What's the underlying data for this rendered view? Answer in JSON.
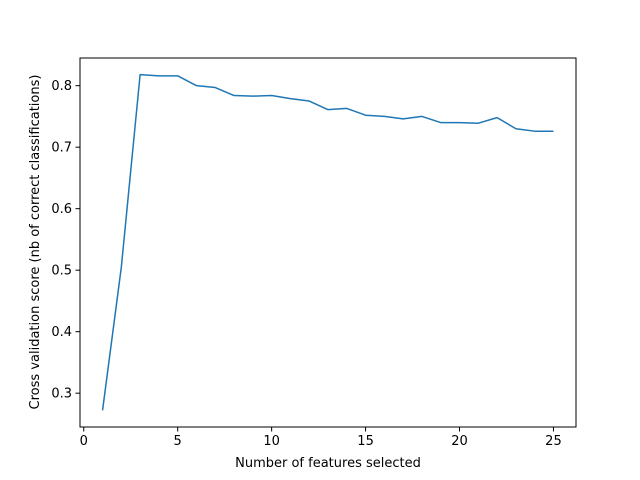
{
  "chart_data": {
    "type": "line",
    "title": "",
    "xlabel": "Number of features selected",
    "ylabel": "Cross validation score (nb of correct classifications)",
    "xlim": [
      -0.2,
      26.2
    ],
    "ylim": [
      0.245,
      0.845
    ],
    "xticks": [
      0,
      5,
      10,
      15,
      20,
      25
    ],
    "xtick_labels": [
      "0",
      "5",
      "10",
      "15",
      "20",
      "25"
    ],
    "yticks": [
      0.3,
      0.4,
      0.5,
      0.6,
      0.7,
      0.8
    ],
    "ytick_labels": [
      "0.3",
      "0.4",
      "0.5",
      "0.6",
      "0.7",
      "0.8"
    ],
    "grid": false,
    "series": [
      {
        "color": "#1f77b4",
        "x": [
          1,
          2,
          3,
          4,
          5,
          6,
          7,
          8,
          9,
          10,
          11,
          12,
          13,
          14,
          15,
          16,
          17,
          18,
          19,
          20,
          21,
          22,
          23,
          24,
          25
        ],
        "y": [
          0.272,
          0.505,
          0.818,
          0.816,
          0.816,
          0.8,
          0.797,
          0.784,
          0.783,
          0.784,
          0.779,
          0.775,
          0.761,
          0.763,
          0.752,
          0.75,
          0.746,
          0.75,
          0.74,
          0.74,
          0.739,
          0.748,
          0.73,
          0.726,
          0.726
        ]
      }
    ]
  }
}
